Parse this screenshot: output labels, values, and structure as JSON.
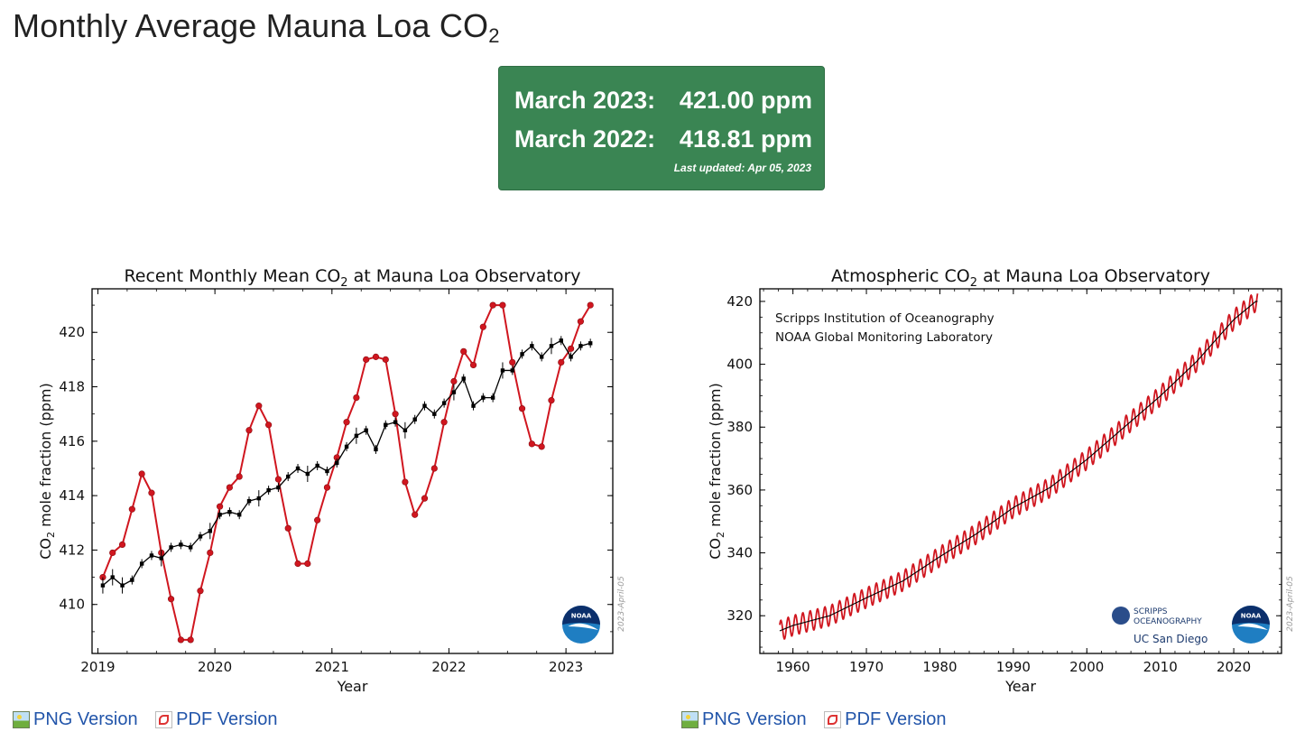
{
  "page": {
    "title": "Monthly Average Mauna Loa CO",
    "title_sub": "2"
  },
  "stats": {
    "row1_label": "March 2023:",
    "row1_value": "421.00 ppm",
    "row2_label": "March 2022:",
    "row2_value": "418.81 ppm",
    "updated": "Last updated: Apr 05, 2023"
  },
  "links": {
    "left": [
      {
        "label": "PNG Version",
        "icon": "png-image-icon"
      },
      {
        "label": "PDF Version",
        "icon": "pdf-file-icon"
      }
    ],
    "right": [
      {
        "label": "PNG Version",
        "icon": "png-image-icon"
      },
      {
        "label": "PDF Version",
        "icon": "pdf-file-icon"
      }
    ]
  },
  "colors": {
    "accent_green": "#3a8553",
    "series_red": "#d0161f",
    "series_black": "#000000",
    "link_blue": "#2255aa"
  },
  "chart_data": [
    {
      "type": "line",
      "title": "Recent Monthly Mean CO",
      "title_sub": "2",
      "title_tail": " at Mauna Loa Observatory",
      "xlabel": "Year",
      "ylabel_pre": "CO",
      "ylabel_sub": "2",
      "ylabel_post": " mole fraction (ppm)",
      "xlim": [
        2018.95,
        2023.4
      ],
      "ylim": [
        408.2,
        421.6
      ],
      "xticks": [
        2019,
        2020,
        2021,
        2022,
        2023
      ],
      "yticks": [
        410,
        412,
        414,
        416,
        418,
        420
      ],
      "date_stamp": "2023-April-05",
      "logo": "NOAA",
      "series": [
        {
          "kind": "monthly",
          "color": "#d0161f",
          "start": 2019.042,
          "values": [
            411.0,
            411.9,
            412.2,
            413.5,
            414.8,
            414.1,
            411.9,
            410.2,
            408.7,
            408.7,
            410.5,
            411.9,
            413.6,
            414.3,
            414.7,
            416.4,
            417.3,
            416.6,
            414.6,
            412.8,
            411.5,
            411.5,
            413.1,
            414.3,
            415.4,
            416.7,
            417.6,
            419.0,
            419.1,
            419.0,
            417.0,
            414.5,
            413.3,
            413.9,
            415.0,
            416.7,
            418.2,
            419.3,
            418.8,
            420.2,
            421.0,
            421.0,
            418.9,
            417.2,
            415.9,
            415.8,
            417.5,
            418.9,
            419.4,
            420.4,
            421.0
          ]
        },
        {
          "kind": "deseasonalized",
          "color": "#000000",
          "start": 2019.042,
          "values": [
            410.7,
            411.0,
            410.7,
            410.9,
            411.5,
            411.8,
            411.7,
            412.1,
            412.2,
            412.1,
            412.5,
            412.7,
            413.3,
            413.4,
            413.3,
            413.8,
            413.9,
            414.2,
            414.3,
            414.7,
            415.0,
            414.8,
            415.1,
            414.9,
            415.2,
            415.8,
            416.2,
            416.4,
            415.7,
            416.6,
            416.7,
            416.4,
            416.8,
            417.3,
            417.0,
            417.4,
            417.8,
            418.3,
            417.3,
            417.6,
            417.6,
            418.6,
            418.6,
            419.2,
            419.5,
            419.1,
            419.5,
            419.7,
            419.1,
            419.5,
            419.6
          ]
        }
      ]
    },
    {
      "type": "line",
      "title": "Atmospheric CO",
      "title_sub": "2",
      "title_tail": " at Mauna Loa Observatory",
      "xlabel": "Year",
      "ylabel_pre": "CO",
      "ylabel_sub": "2",
      "ylabel_post": " mole fraction (ppm)",
      "xlim": [
        1955.5,
        2026.5
      ],
      "ylim": [
        308,
        424
      ],
      "xticks": [
        1960,
        1970,
        1980,
        1990,
        2000,
        2010,
        2020
      ],
      "yticks": [
        320,
        340,
        360,
        380,
        400,
        420
      ],
      "annotations": [
        "Scripps Institution of Oceanography",
        "NOAA Global Monitoring Laboratory"
      ],
      "date_stamp": "2023-April-05",
      "logos": [
        "SCRIPPS INSTITUTION OF OCEANOGRAPHY",
        "UC San Diego",
        "NOAA"
      ],
      "trend_years": [
        1958,
        1960,
        1965,
        1970,
        1975,
        1980,
        1985,
        1990,
        1995,
        2000,
        2005,
        2010,
        2015,
        2020,
        2023
      ],
      "trend_values": [
        315.0,
        316.9,
        320.0,
        325.7,
        331.1,
        338.8,
        346.1,
        354.4,
        360.8,
        369.7,
        379.8,
        389.9,
        401.0,
        414.2,
        420.0
      ],
      "seasonal_amplitude_ppm": 3.2
    }
  ]
}
